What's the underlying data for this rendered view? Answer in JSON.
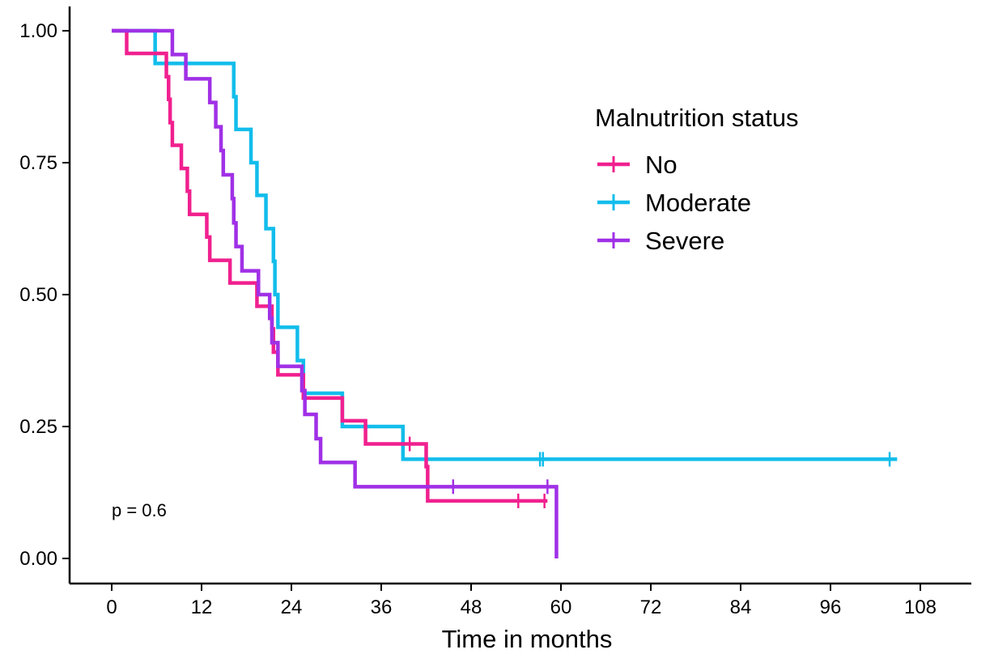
{
  "chart_data": {
    "type": "line",
    "subtype": "kaplan-meier step curve",
    "title": "",
    "xlabel": "Time in months",
    "ylabel": "",
    "xlim": [
      0,
      108
    ],
    "ylim": [
      0,
      1
    ],
    "x_ticks": [
      0,
      12,
      24,
      36,
      48,
      60,
      72,
      84,
      96,
      108
    ],
    "x_tick_labels": [
      "0",
      "12",
      "24",
      "36",
      "48",
      "60",
      "72",
      "84",
      "96",
      "108"
    ],
    "y_ticks": [
      0,
      0.25,
      0.5,
      0.75,
      1.0
    ],
    "y_tick_labels": [
      "0.00",
      "0.25",
      "0.50",
      "0.75",
      "1.00"
    ],
    "grid": false,
    "legend": {
      "title": "Malnutrition status",
      "placement": "top-right (inside plot)",
      "entries": [
        "No",
        "Moderate",
        "Severe"
      ]
    },
    "annotation": "p = 0.6",
    "series": [
      {
        "name": "No",
        "color": "#F0208F",
        "steps": [
          [
            0,
            1.0
          ],
          [
            2.0,
            0.957
          ],
          [
            7.3,
            0.913
          ],
          [
            7.6,
            0.87
          ],
          [
            7.8,
            0.826
          ],
          [
            8.1,
            0.783
          ],
          [
            9.3,
            0.739
          ],
          [
            10.1,
            0.696
          ],
          [
            10.4,
            0.652
          ],
          [
            12.7,
            0.609
          ],
          [
            13.1,
            0.565
          ],
          [
            15.8,
            0.522
          ],
          [
            19.4,
            0.478
          ],
          [
            21.4,
            0.435
          ],
          [
            21.6,
            0.391
          ],
          [
            22.2,
            0.348
          ],
          [
            25.6,
            0.304
          ],
          [
            30.8,
            0.261
          ],
          [
            33.9,
            0.217
          ],
          [
            42.0,
            0.174
          ],
          [
            42.2,
            0.109
          ]
        ],
        "end_x": 58.2,
        "censored": [
          [
            39.8,
            0.217
          ],
          [
            54.3,
            0.109
          ],
          [
            57.8,
            0.109
          ]
        ]
      },
      {
        "name": "Moderate",
        "color": "#12BDEB",
        "steps": [
          [
            0,
            1.0
          ],
          [
            5.8,
            0.938
          ],
          [
            16.3,
            0.875
          ],
          [
            16.6,
            0.813
          ],
          [
            18.6,
            0.75
          ],
          [
            19.4,
            0.688
          ],
          [
            20.6,
            0.625
          ],
          [
            21.6,
            0.563
          ],
          [
            21.8,
            0.5
          ],
          [
            22.2,
            0.438
          ],
          [
            24.8,
            0.375
          ],
          [
            25.6,
            0.313
          ],
          [
            30.8,
            0.25
          ],
          [
            38.9,
            0.188
          ]
        ],
        "end_x": 104.9,
        "censored": [
          [
            57.2,
            0.188
          ],
          [
            57.6,
            0.188
          ],
          [
            103.9,
            0.188
          ]
        ]
      },
      {
        "name": "Severe",
        "color": "#A030E6",
        "steps": [
          [
            0,
            1.0
          ],
          [
            8.1,
            0.955
          ],
          [
            9.9,
            0.909
          ],
          [
            13.1,
            0.864
          ],
          [
            13.9,
            0.818
          ],
          [
            14.6,
            0.773
          ],
          [
            14.9,
            0.727
          ],
          [
            16.1,
            0.682
          ],
          [
            16.3,
            0.636
          ],
          [
            16.6,
            0.591
          ],
          [
            17.4,
            0.545
          ],
          [
            19.6,
            0.5
          ],
          [
            21.1,
            0.455
          ],
          [
            21.4,
            0.409
          ],
          [
            22.2,
            0.364
          ],
          [
            25.4,
            0.318
          ],
          [
            25.8,
            0.273
          ],
          [
            27.3,
            0.227
          ],
          [
            27.9,
            0.182
          ],
          [
            32.5,
            0.136
          ],
          [
            59.4,
            0.0
          ]
        ],
        "end_x": 59.4,
        "censored": [
          [
            45.6,
            0.136
          ],
          [
            58.2,
            0.136
          ]
        ]
      }
    ]
  }
}
